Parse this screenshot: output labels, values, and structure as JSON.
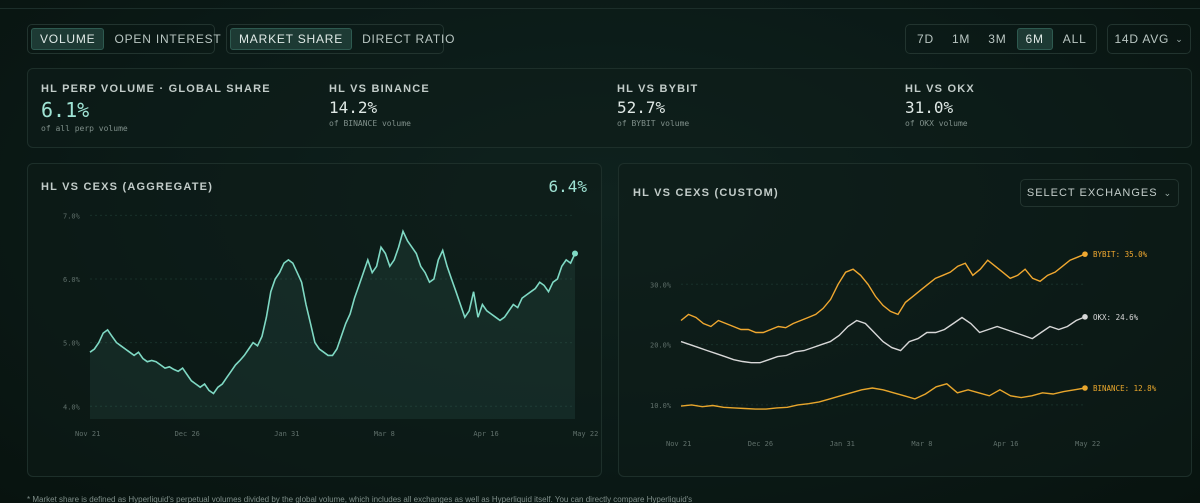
{
  "controls": {
    "metric_tabs": [
      {
        "label": "VOLUME",
        "active": true
      },
      {
        "label": "OPEN INTEREST",
        "active": false
      }
    ],
    "mode_tabs": [
      {
        "label": "MARKET SHARE",
        "active": true
      },
      {
        "label": "DIRECT RATIO",
        "active": false
      }
    ],
    "range_tabs": [
      {
        "label": "7D",
        "active": false
      },
      {
        "label": "1M",
        "active": false
      },
      {
        "label": "3M",
        "active": false
      },
      {
        "label": "6M",
        "active": true
      },
      {
        "label": "ALL",
        "active": false
      }
    ],
    "avg_dropdown": "14D AVG"
  },
  "stats": [
    {
      "label": "HL PERP VOLUME · GLOBAL SHARE",
      "value": "6.1%",
      "sub": "of all perp volume"
    },
    {
      "label": "HL VS BINANCE",
      "value": "14.2%",
      "sub": "of BINANCE volume"
    },
    {
      "label": "HL VS BYBIT",
      "value": "52.7%",
      "sub": "of BYBIT volume"
    },
    {
      "label": "HL VS OKX",
      "value": "31.0%",
      "sub": "of OKX volume"
    }
  ],
  "left_panel": {
    "title": "HL VS CEXS (AGGREGATE)",
    "value": "6.4%"
  },
  "right_panel": {
    "title": "HL VS CEXS (CUSTOM)",
    "select_label": "SELECT EXCHANGES"
  },
  "footnote": "* Market share is defined as Hyperliquid's perpetual volumes divided by the global volume, which includes all exchanges as well as Hyperliquid itself. You can directly compare Hyperliquid's",
  "colors": {
    "accent": "#7fd9c4",
    "bybit": "#f0a830",
    "okx": "#d8d8d8",
    "binance": "#e8a62c"
  },
  "chart_data": [
    {
      "type": "area",
      "title": "HL VS CEXS (AGGREGATE)",
      "x_ticks": [
        "Nov 21",
        "Dec 26",
        "Jan 31",
        "Mar 8",
        "Apr 16",
        "May 22"
      ],
      "y_ticks": [
        "4.0%",
        "5.0%",
        "6.0%",
        "7.0%"
      ],
      "ylim": [
        3.8,
        7.1
      ],
      "series": [
        {
          "values": [
            4.85,
            4.9,
            5.0,
            5.15,
            5.2,
            5.1,
            5.0,
            4.95,
            4.9,
            4.85,
            4.8,
            4.85,
            4.75,
            4.7,
            4.72,
            4.7,
            4.65,
            4.6,
            4.62,
            4.58,
            4.55,
            4.6,
            4.5,
            4.4,
            4.35,
            4.3,
            4.35,
            4.25,
            4.2,
            4.3,
            4.35,
            4.45,
            4.55,
            4.65,
            4.72,
            4.8,
            4.9,
            5.0,
            4.95,
            5.1,
            5.4,
            5.8,
            6.0,
            6.1,
            6.25,
            6.3,
            6.25,
            6.1,
            5.95,
            5.6,
            5.3,
            5.0,
            4.9,
            4.85,
            4.8,
            4.8,
            4.9,
            5.1,
            5.3,
            5.45,
            5.7,
            5.9,
            6.1,
            6.3,
            6.1,
            6.2,
            6.5,
            6.4,
            6.2,
            6.3,
            6.5,
            6.75,
            6.6,
            6.5,
            6.4,
            6.2,
            6.1,
            5.95,
            6.0,
            6.3,
            6.45,
            6.2,
            6.0,
            5.8,
            5.6,
            5.4,
            5.5,
            5.8,
            5.4,
            5.6,
            5.5,
            5.45,
            5.4,
            5.35,
            5.4,
            5.5,
            5.6,
            5.55,
            5.7,
            5.75,
            5.8,
            5.85,
            5.95,
            5.9,
            5.8,
            5.95,
            6.0,
            6.2,
            6.3,
            6.25,
            6.4
          ]
        }
      ]
    },
    {
      "type": "line",
      "title": "HL VS CEXS (CUSTOM)",
      "x_ticks": [
        "Nov 21",
        "Dec 26",
        "Jan 31",
        "Mar 8",
        "Apr 16",
        "May 22"
      ],
      "y_ticks": [
        "10.0%",
        "20.0%",
        "30.0%"
      ],
      "ylim": [
        6,
        40
      ],
      "series": [
        {
          "name": "BYBIT",
          "end_label": "35.0%",
          "color": "#f0a830",
          "values": [
            24,
            25,
            24.5,
            23.5,
            23,
            24,
            23.5,
            23,
            22.5,
            22.5,
            22,
            22,
            22.5,
            23,
            22.8,
            23.5,
            24,
            24.5,
            25,
            26,
            27.5,
            30,
            32,
            32.5,
            31.5,
            30,
            28,
            26.5,
            25.5,
            25,
            27,
            28,
            29,
            30,
            31,
            31.5,
            32,
            33,
            33.5,
            31.5,
            32.5,
            34,
            33,
            32,
            31,
            31.5,
            32.5,
            31,
            30.5,
            31.5,
            32,
            33,
            34,
            34.5,
            35
          ]
        },
        {
          "name": "OKX",
          "end_label": "24.6%",
          "color": "#d8d8d8",
          "values": [
            20.5,
            20,
            19.5,
            19,
            18.5,
            18,
            17.5,
            17.2,
            17,
            17,
            17.5,
            18,
            18.2,
            18.8,
            19,
            19.5,
            20,
            20.5,
            21.5,
            23,
            24,
            23.5,
            22,
            20.5,
            19.5,
            19,
            20.5,
            21,
            22,
            22,
            22.5,
            23.5,
            24.5,
            23.5,
            22,
            22.5,
            23,
            22.5,
            22,
            21.5,
            21,
            22,
            23,
            22.5,
            23,
            24,
            24.6
          ]
        },
        {
          "name": "BINANCE",
          "end_label": "12.8%",
          "color": "#e8a62c",
          "values": [
            9.8,
            10,
            9.7,
            9.9,
            9.6,
            9.5,
            9.4,
            9.3,
            9.3,
            9.5,
            9.6,
            10,
            10.2,
            10.5,
            11,
            11.5,
            12,
            12.5,
            12.8,
            12.5,
            12,
            11.5,
            11,
            11.8,
            13,
            13.5,
            12,
            12.5,
            12,
            11.5,
            12.5,
            11.5,
            11.2,
            11.5,
            12,
            11.8,
            12.2,
            12.5,
            12.8
          ]
        }
      ]
    }
  ]
}
